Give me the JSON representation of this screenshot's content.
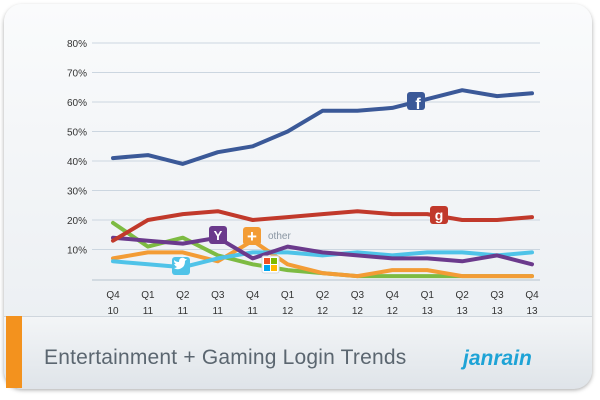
{
  "chart_data": {
    "type": "line",
    "title": "Entertainment + Gaming Login Trends",
    "categories": [
      [
        "Q4",
        "10"
      ],
      [
        "Q1",
        "11"
      ],
      [
        "Q2",
        "11"
      ],
      [
        "Q3",
        "11"
      ],
      [
        "Q4",
        "11"
      ],
      [
        "Q1",
        "12"
      ],
      [
        "Q2",
        "12"
      ],
      [
        "Q3",
        "12"
      ],
      [
        "Q4",
        "12"
      ],
      [
        "Q1",
        "13"
      ],
      [
        "Q2",
        "13"
      ],
      [
        "Q3",
        "13"
      ],
      [
        "Q4",
        "13"
      ]
    ],
    "y_ticks": [
      "80%",
      "70%",
      "60%",
      "50%",
      "40%",
      "30%",
      "20%",
      "10%"
    ],
    "ylim": [
      0,
      80
    ],
    "grid": true,
    "series": [
      {
        "icon": "facebook-icon",
        "color": "#3b5998",
        "values": [
          41,
          42,
          39,
          43,
          45,
          50,
          57,
          57,
          58,
          61,
          64,
          62,
          63
        ]
      },
      {
        "icon": "google-icon",
        "color": "#c1392b",
        "values": [
          13,
          20,
          22,
          23,
          20,
          21,
          22,
          23,
          22,
          22,
          20,
          20,
          21
        ]
      },
      {
        "icon": "yahoo-icon",
        "color": "#6b3a8c",
        "values": [
          14,
          13,
          12,
          14,
          7,
          11,
          9,
          8,
          7,
          7,
          6,
          8,
          5
        ]
      },
      {
        "icon": "twitter-icon",
        "color": "#4fc3e8",
        "values": [
          6,
          5,
          4,
          7,
          9,
          9,
          8,
          9,
          8,
          9,
          9,
          8,
          9
        ]
      },
      {
        "icon": "microsoft-icon",
        "color": "#7dbb42",
        "values": [
          19,
          11,
          14,
          8,
          5,
          3,
          2,
          1,
          1,
          1,
          1,
          1,
          1
        ]
      },
      {
        "name": "other",
        "icon": "plus-icon",
        "color": "#f39c35",
        "values": [
          7,
          9,
          9,
          6,
          13,
          5,
          2,
          1,
          3,
          3,
          1,
          1,
          1
        ]
      }
    ]
  },
  "footer": {
    "title": "Entertainment + Gaming Login Trends",
    "brand": "janrain"
  },
  "colors": {
    "accent": "#f3921e",
    "brand": "#1ea3d6"
  }
}
